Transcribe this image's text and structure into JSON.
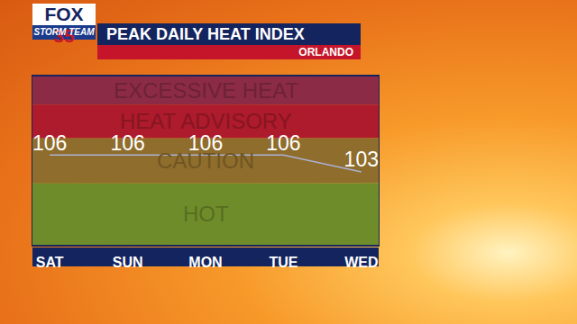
{
  "branding": {
    "logo": "FOX 35",
    "team": "STORM TEAM"
  },
  "chart_data": {
    "type": "line",
    "title": "PEAK DAILY HEAT INDEX",
    "subtitle": "ORLANDO",
    "categories": [
      "SAT",
      "SUN",
      "MON",
      "TUE",
      "WED"
    ],
    "values": [
      106,
      106,
      106,
      106,
      103
    ],
    "color": "#a9b2d6",
    "data_labels": true,
    "tick_labels": "x",
    "grid": false,
    "ylim": [
      90,
      120
    ],
    "bands": [
      {
        "label": "EXCESSIVE HEAT",
        "from": 115,
        "to": 120,
        "color": "#8c2b45"
      },
      {
        "label": "HEAT ADVISORY",
        "from": 109,
        "to": 115,
        "color": "#ad1b2c"
      },
      {
        "label": "CAUTION",
        "from": 101,
        "to": 109,
        "color": "#8f6d2c"
      },
      {
        "label": "HOT",
        "from": 90,
        "to": 101,
        "color": "#6f8c2a"
      }
    ]
  }
}
